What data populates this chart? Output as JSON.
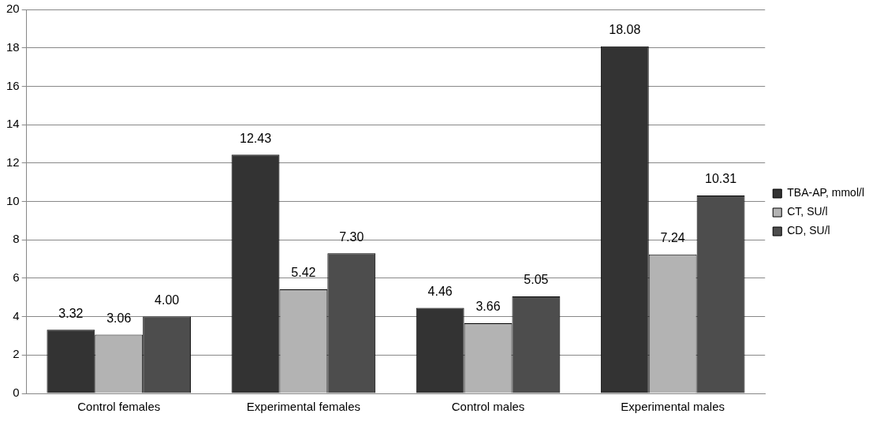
{
  "chart_data": {
    "type": "bar",
    "categories": [
      "Control females",
      "Experimental females",
      "Control males",
      "Experimental males"
    ],
    "series": [
      {
        "name": "TBA-AP, mmol/l",
        "color": "#333333",
        "values": [
          3.32,
          12.43,
          4.46,
          18.08
        ]
      },
      {
        "name": "CT, SU/l",
        "color": "#b3b3b3",
        "values": [
          3.06,
          5.42,
          3.66,
          7.24
        ]
      },
      {
        "name": "CD, SU/l",
        "color": "#4d4d4d",
        "values": [
          4.0,
          7.3,
          5.05,
          10.31
        ]
      }
    ],
    "value_labels": [
      [
        "3.32",
        "12.43",
        "4.46",
        "18.08"
      ],
      [
        "3.06",
        "5.42",
        "3.66",
        "7.24"
      ],
      [
        "4.00",
        "7.30",
        "5.05",
        "10.31"
      ]
    ],
    "ylim": [
      0,
      20
    ],
    "yticks": [
      0,
      2,
      4,
      6,
      8,
      10,
      12,
      14,
      16,
      18,
      20
    ],
    "grid": "y",
    "legend": "right"
  }
}
